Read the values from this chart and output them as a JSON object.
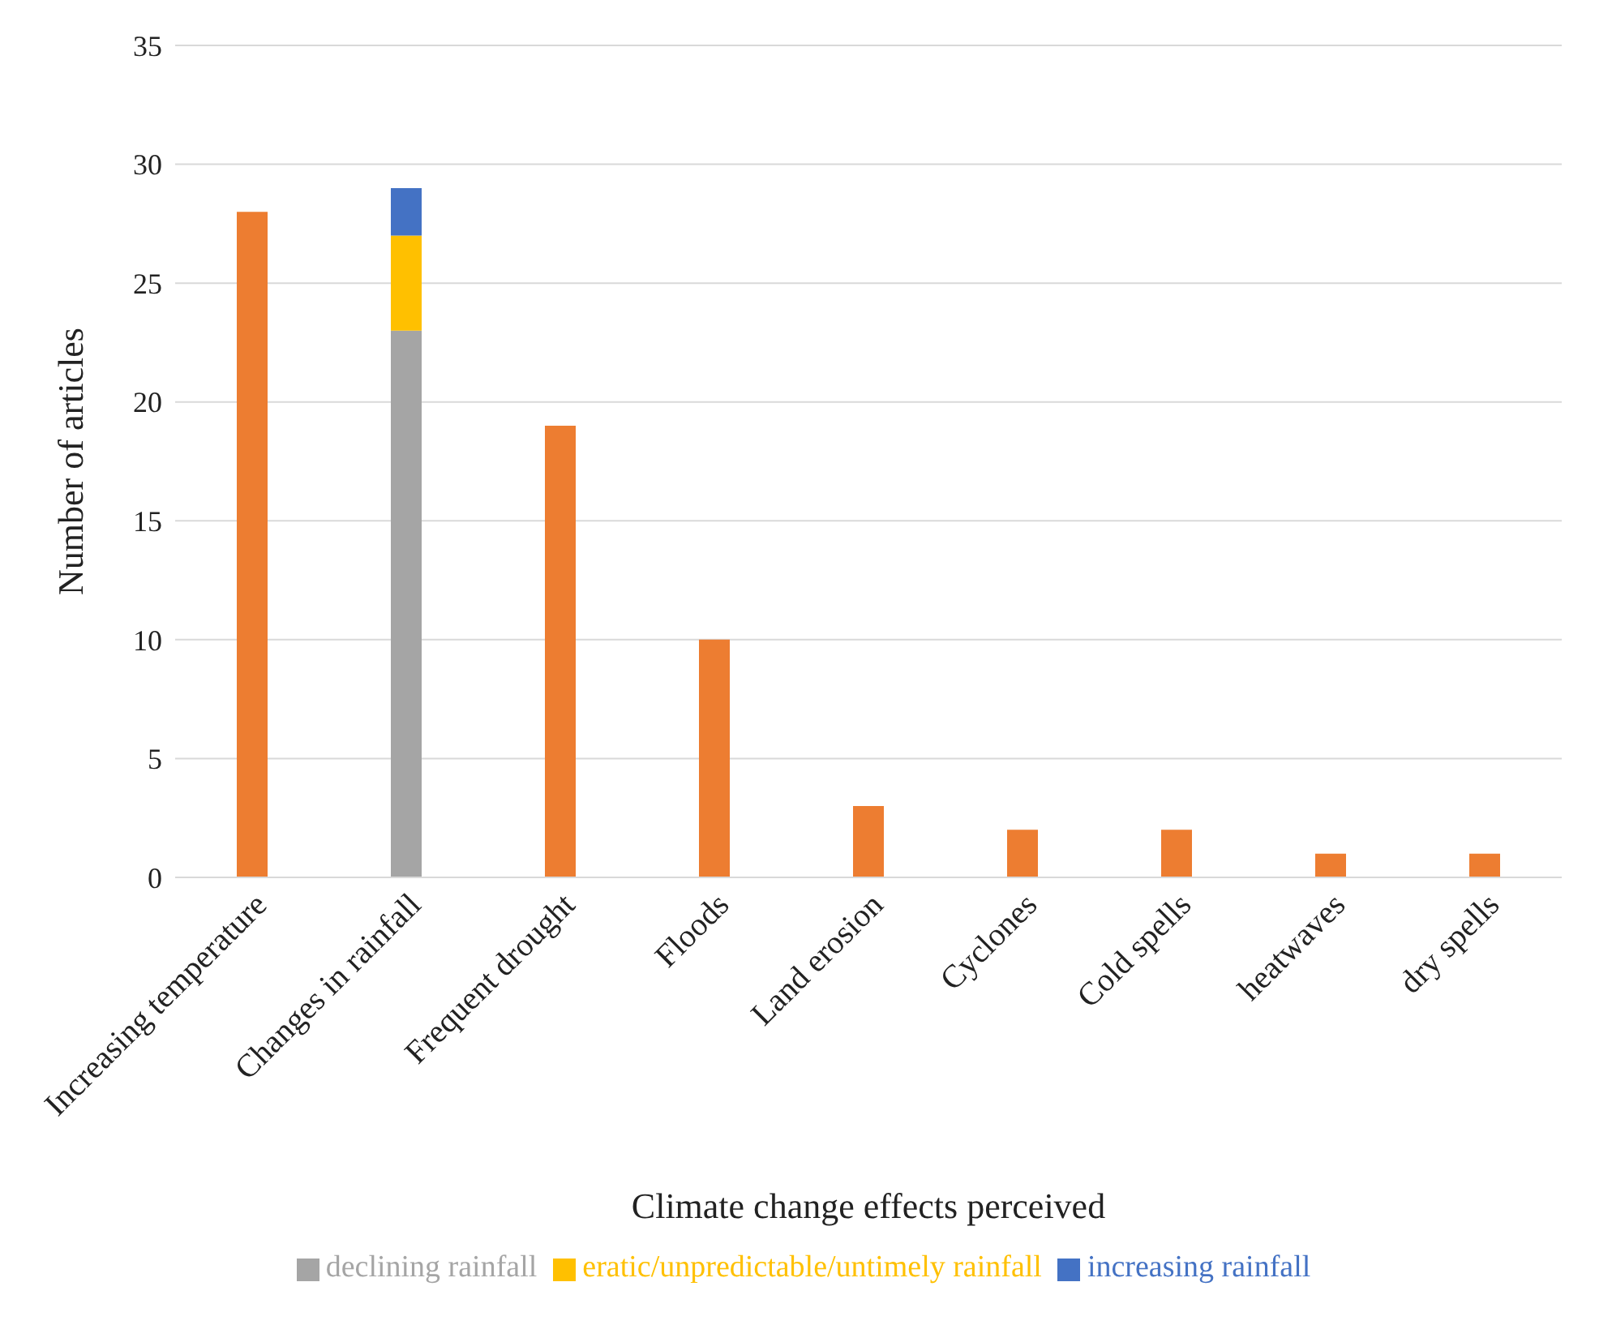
{
  "chart_data": {
    "type": "bar",
    "stacked": true,
    "xlabel": "Climate change effects perceived",
    "ylabel": "Number of articles",
    "categories": [
      "Increasing temperature",
      "Changes in rainfall",
      "Frequent drought",
      "Floods",
      "Land erosion",
      "Cyclones",
      "Cold spells",
      "heatwaves",
      "dry spells"
    ],
    "series": [
      {
        "color": "#ed7d31",
        "values": [
          28,
          null,
          19,
          10,
          3,
          2,
          2,
          1,
          1
        ]
      },
      {
        "name": "declining rainfall",
        "color": "#a5a5a5",
        "values": [
          null,
          23,
          null,
          null,
          null,
          null,
          null,
          null,
          null
        ]
      },
      {
        "name": "eratic/unpredictable/untimely rainfall",
        "color": "#ffc000",
        "values": [
          null,
          4,
          null,
          null,
          null,
          null,
          null,
          null,
          null
        ]
      },
      {
        "name": "increasing rainfall",
        "color": "#4472c4",
        "values": [
          null,
          2,
          null,
          null,
          null,
          null,
          null,
          null,
          null
        ]
      }
    ],
    "ylim": [
      0,
      35
    ],
    "yticks": [
      0,
      5,
      10,
      15,
      20,
      25,
      30,
      35
    ],
    "grid": "y",
    "legend": "bottom"
  }
}
